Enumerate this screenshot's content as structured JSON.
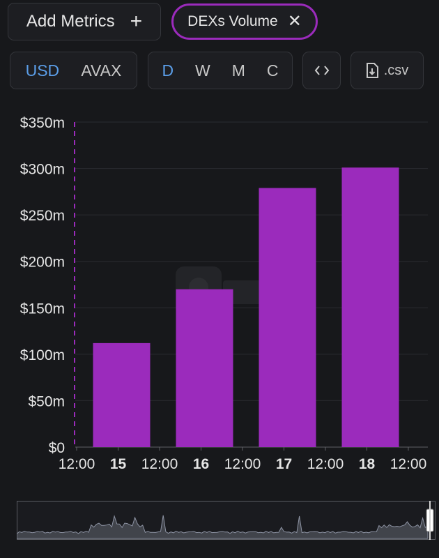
{
  "toolbar": {
    "add_metrics_label": "Add Metrics",
    "add_icon": "plus-icon",
    "metric_chip_label": "DEXs Volume",
    "remove_icon": "close-icon",
    "currency_options": [
      "USD",
      "AVAX"
    ],
    "currency_selected": "USD",
    "period_options": [
      "D",
      "W",
      "M",
      "C"
    ],
    "period_selected": "D",
    "embed_icon": "code-brackets-icon",
    "csv_label": ".csv",
    "csv_icon": "file-download-icon"
  },
  "colors": {
    "background": "#17181b",
    "bar": "#9b2bbc",
    "active_option": "#5b9ee8",
    "chip_border": "#9b2bbc"
  },
  "watermark_icon": "defillama-logo-icon",
  "chart_data": {
    "type": "bar",
    "x_ticks": [
      {
        "label": "12:00",
        "bold": false
      },
      {
        "label": "15",
        "bold": true
      },
      {
        "label": "12:00",
        "bold": false
      },
      {
        "label": "16",
        "bold": true
      },
      {
        "label": "12:00",
        "bold": false
      },
      {
        "label": "17",
        "bold": true
      },
      {
        "label": "12:00",
        "bold": false
      },
      {
        "label": "18",
        "bold": true
      },
      {
        "label": "12:00",
        "bold": false
      }
    ],
    "categories": [
      "15",
      "16",
      "17",
      "18"
    ],
    "values": [
      112000000,
      170000000,
      279000000,
      301000000
    ],
    "y_ticks": [
      {
        "value": 0,
        "label": "$0"
      },
      {
        "value": 50000000,
        "label": "$50m"
      },
      {
        "value": 100000000,
        "label": "$100m"
      },
      {
        "value": 150000000,
        "label": "$150m"
      },
      {
        "value": 200000000,
        "label": "$200m"
      },
      {
        "value": 250000000,
        "label": "$250m"
      },
      {
        "value": 300000000,
        "label": "$300m"
      },
      {
        "value": 350000000,
        "label": "$350m"
      }
    ],
    "ylim": [
      0,
      350000000
    ],
    "grid": true,
    "legend": "none"
  }
}
